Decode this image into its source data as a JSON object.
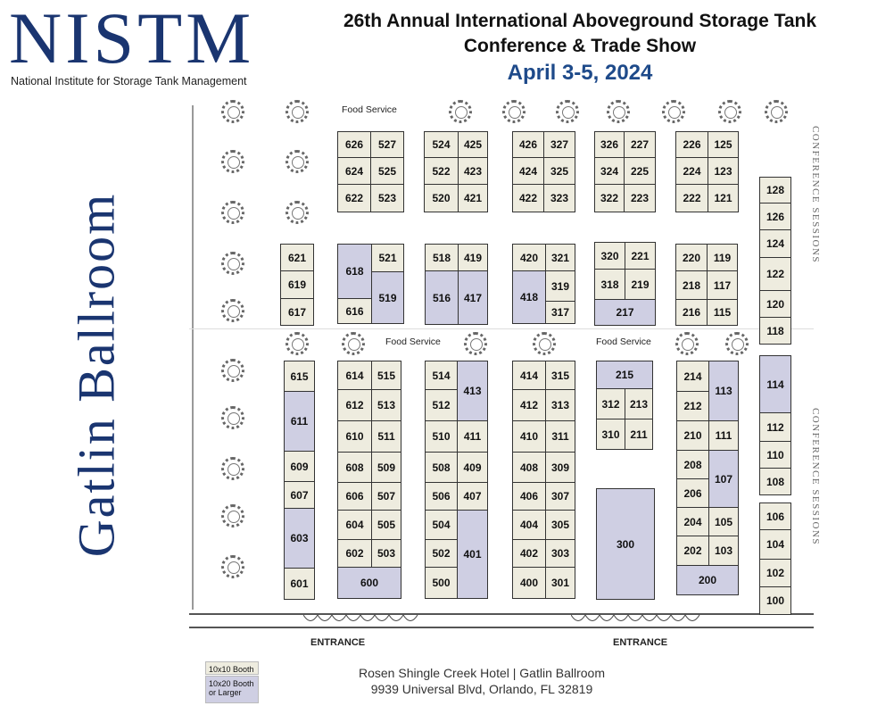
{
  "header": {
    "logo": "NISTM",
    "logo_sub": "National Institute for Storage Tank Management",
    "title_line1": "26th Annual International Aboveground Storage Tank",
    "title_line2": "Conference & Trade Show",
    "date": "April 3-5, 2024"
  },
  "room_name": "Gatlin Ballroom",
  "labels": {
    "food_service": "Food Service",
    "conference_sessions": "CONFERENCE SESSIONS",
    "entrance": "ENTRANCE"
  },
  "legend": {
    "standard": "10x10 Booth",
    "large": "10x20 Booth or Larger"
  },
  "venue": {
    "line1": "Rosen Shingle Creek Hotel  | Gatlin Ballroom",
    "line2": "9939 Universal Blvd, Orlando, FL 32819"
  },
  "booths": [
    "626",
    "527",
    "624",
    "525",
    "622",
    "523",
    "524",
    "425",
    "522",
    "423",
    "520",
    "421",
    "426",
    "327",
    "424",
    "325",
    "422",
    "323",
    "326",
    "227",
    "324",
    "225",
    "322",
    "223",
    "226",
    "125",
    "224",
    "123",
    "222",
    "121",
    "128",
    "126",
    "124",
    "122",
    "120",
    "118",
    "621",
    "619",
    "617",
    "618",
    "521",
    "519",
    "616",
    "518",
    "419",
    "516",
    "417",
    "420",
    "321",
    "319",
    "418",
    "317",
    "320",
    "221",
    "318",
    "219",
    "217",
    "220",
    "119",
    "218",
    "117",
    "216",
    "115",
    "615",
    "611",
    "609",
    "607",
    "603",
    "601",
    "614",
    "515",
    "612",
    "513",
    "610",
    "511",
    "608",
    "509",
    "606",
    "507",
    "604",
    "505",
    "602",
    "503",
    "600",
    "514",
    "413",
    "512",
    "510",
    "411",
    "508",
    "409",
    "506",
    "407",
    "504",
    "401",
    "502",
    "500",
    "414",
    "315",
    "412",
    "313",
    "410",
    "311",
    "408",
    "309",
    "406",
    "307",
    "404",
    "305",
    "402",
    "303",
    "400",
    "301",
    "215",
    "312",
    "213",
    "310",
    "211",
    "300",
    "214",
    "113",
    "212",
    "210",
    "111",
    "208",
    "107",
    "206",
    "204",
    "105",
    "202",
    "103",
    "200",
    "114",
    "112",
    "110",
    "108",
    "106",
    "104",
    "102",
    "100"
  ]
}
